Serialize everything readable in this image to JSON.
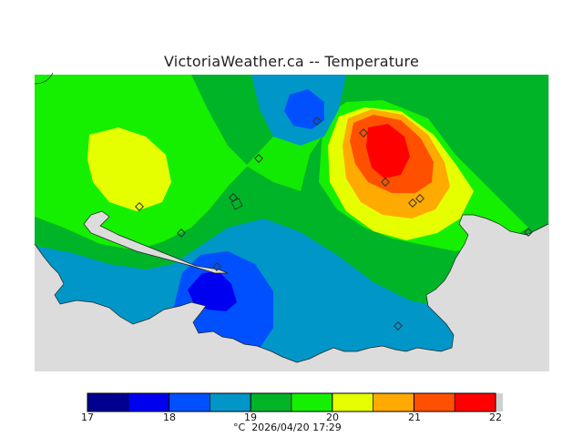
{
  "title": "VictoriaWeather.ca -- Temperature",
  "colorbar": {
    "unit": "°C",
    "timestamp": "2026/04/20 17:29",
    "ticks": [
      "17",
      "18",
      "19",
      "20",
      "21",
      "22"
    ],
    "colors": [
      "#000090",
      "#0000f0",
      "#0050ff",
      "#0096c8",
      "#00b428",
      "#14f000",
      "#e6ff00",
      "#ffaa00",
      "#ff5000",
      "#ff0000"
    ]
  },
  "map": {
    "ocean_color": "#dcdcdc",
    "station_count": 14
  }
}
